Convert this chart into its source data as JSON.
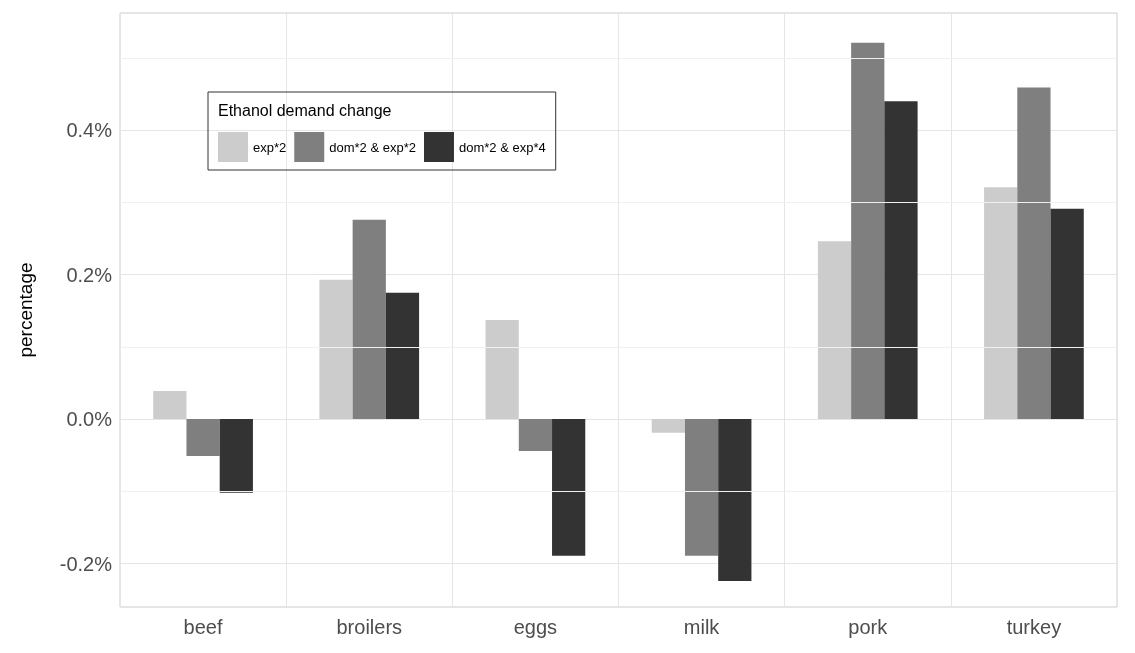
{
  "chart_data": {
    "type": "bar",
    "ylabel": "percentage",
    "legend_title": "Ethanol demand change",
    "legend": "top left",
    "categories": [
      "beef",
      "broilers",
      "eggs",
      "milk",
      "pork",
      "turkey"
    ],
    "series": [
      {
        "name": "exp*2",
        "color": "#cccccc",
        "values": [
          0.039,
          0.193,
          0.137,
          -0.019,
          0.246,
          0.321
        ]
      },
      {
        "name": "dom*2 & exp*2",
        "color": "#7f7f7f",
        "values": [
          -0.051,
          0.276,
          -0.044,
          -0.189,
          0.521,
          0.459
        ]
      },
      {
        "name": "dom*2 & exp*4",
        "color": "#333333",
        "values": [
          -0.102,
          0.175,
          -0.189,
          -0.224,
          0.44,
          0.291
        ]
      }
    ],
    "ylim": [
      -0.26,
      0.562
    ],
    "yticks": [
      {
        "value": -0.2,
        "label": "-0.2%"
      },
      {
        "value": 0,
        "label": "0.0%"
      },
      {
        "value": 0.2,
        "label": "0.2%"
      },
      {
        "value": 0.4,
        "label": "0.4%"
      }
    ],
    "grid": true
  }
}
